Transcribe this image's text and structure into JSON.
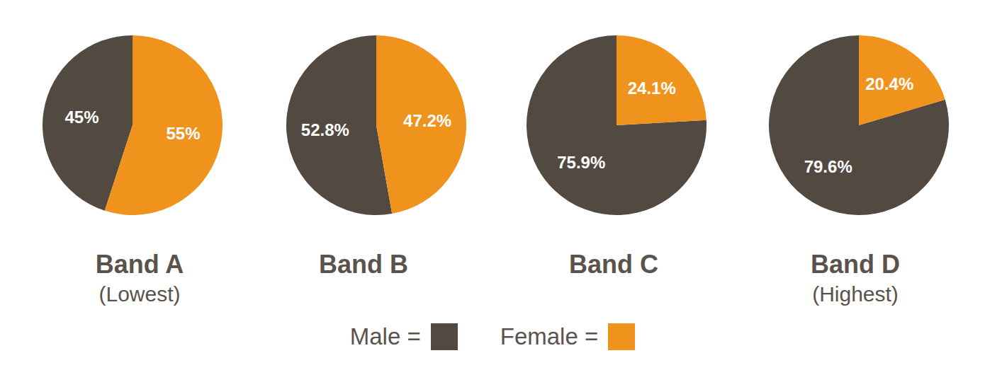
{
  "chart_data": [
    {
      "type": "pie",
      "title": "Band A",
      "subtitle": "(Lowest)",
      "categories": [
        "Male =",
        "Female ="
      ],
      "values": [
        45,
        55
      ],
      "value_labels": [
        "45%",
        "55%"
      ],
      "colors": [
        "#524940",
        "#f0931d"
      ],
      "data_labels": true,
      "legend": "bottom"
    },
    {
      "type": "pie",
      "title": "Band B",
      "categories": [
        "Male =",
        "Female ="
      ],
      "values": [
        52.8,
        47.2
      ],
      "value_labels": [
        "52.8%",
        "47.2%"
      ],
      "colors": [
        "#524940",
        "#f0931d"
      ],
      "data_labels": true,
      "legend": "bottom"
    },
    {
      "type": "pie",
      "title": "Band C",
      "categories": [
        "Male =",
        "Female ="
      ],
      "values": [
        75.9,
        24.1
      ],
      "value_labels": [
        "75.9%",
        "24.1%"
      ],
      "colors": [
        "#524940",
        "#f0931d"
      ],
      "data_labels": true,
      "legend": "bottom"
    },
    {
      "type": "pie",
      "title": "Band D",
      "subtitle": "(Highest)",
      "categories": [
        "Male =",
        "Female ="
      ],
      "values": [
        79.6,
        20.4
      ],
      "value_labels": [
        "79.6%",
        "20.4%"
      ],
      "colors": [
        "#524940",
        "#f0931d"
      ],
      "data_labels": true,
      "legend": "bottom"
    }
  ]
}
